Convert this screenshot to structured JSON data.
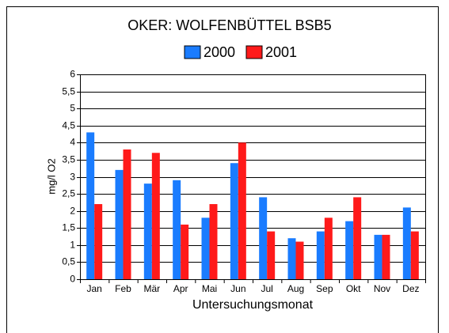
{
  "chart_data": {
    "type": "bar",
    "title": "OKER: WOLFENBÜTTEL BSB5",
    "x_label": "Untersuchungsmonat",
    "y_label": "mg/l O2",
    "categories": [
      "Jan",
      "Feb",
      "Mär",
      "Apr",
      "Mai",
      "Jun",
      "Jul",
      "Aug",
      "Sep",
      "Okt",
      "Nov",
      "Dez"
    ],
    "series": [
      {
        "name": "2000",
        "color": "#1a7cff",
        "values": [
          4.3,
          3.2,
          2.8,
          2.9,
          1.8,
          3.4,
          2.4,
          1.2,
          1.4,
          1.7,
          1.3,
          2.1
        ]
      },
      {
        "name": "2001",
        "color": "#ff1a1a",
        "values": [
          2.2,
          3.8,
          3.7,
          1.6,
          2.2,
          4.0,
          1.4,
          1.1,
          1.8,
          2.4,
          1.3,
          1.4
        ]
      }
    ],
    "ylim": [
      0,
      6
    ],
    "yticks": [
      0,
      {
        "value": 0.5,
        "label": "0,5"
      },
      1,
      {
        "value": 1.5,
        "label": "1,5"
      },
      2,
      {
        "value": 2.5,
        "label": "2,5"
      },
      3,
      {
        "value": 3.5,
        "label": "3,5"
      },
      4,
      {
        "value": 4.5,
        "label": "4,5"
      },
      5,
      {
        "value": 5.5,
        "label": "5,5"
      },
      6
    ],
    "grid": true,
    "legend": "top"
  }
}
